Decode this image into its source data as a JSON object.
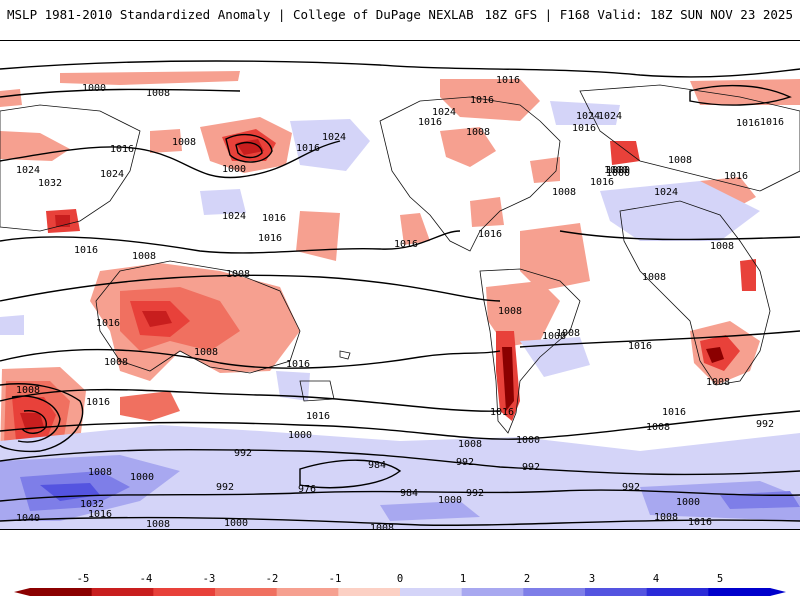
{
  "header": {
    "title_left": "MSLP 1981-2010 Standardized Anomaly | College of DuPage NEXLAB",
    "title_right": "18Z GFS | F168 Valid: 18Z SUN NOV 23 2025"
  },
  "map": {
    "contour_labels": [
      "1000",
      "1008",
      "1016",
      "1024",
      "1032",
      "1040",
      "992",
      "984",
      "976"
    ],
    "label_instances": [
      "1000",
      "1008",
      "1016",
      "1024",
      "1016",
      "1008",
      "1000",
      "1032",
      "1024",
      "1016",
      "1024",
      "1016",
      "1016",
      "1024",
      "1016",
      "1008",
      "1016",
      "1008",
      "1016",
      "1008",
      "1016",
      "1024",
      "1016",
      "1008",
      "1016",
      "1016",
      "1008",
      "1000",
      "1016",
      "1024",
      "1016",
      "1008",
      "1024",
      "1016",
      "1008",
      "1008",
      "1016",
      "1008",
      "1000",
      "992",
      "1016",
      "1008",
      "1000",
      "992",
      "1008",
      "1000",
      "992",
      "1040",
      "1032",
      "1016",
      "1008",
      "1000",
      "976",
      "984",
      "992",
      "984",
      "1000",
      "992",
      "1008",
      "1000",
      "992",
      "1008",
      "1016",
      "1016",
      "1008",
      "992",
      "1008",
      "1016",
      "1000",
      "1008",
      "1016",
      "1024",
      "1016",
      "1008",
      "1016",
      "1008",
      "1008",
      "1000"
    ]
  },
  "colorbar": {
    "ticks": [
      "-5",
      "-4",
      "-3",
      "-2",
      "-1",
      "0",
      "1",
      "2",
      "3",
      "4",
      "5"
    ],
    "colors_negative": [
      "#8b0000",
      "#c81e1e",
      "#e8413a",
      "#f07060",
      "#f6a090",
      "#fcd0c4"
    ],
    "colors_positive": [
      "#d4d4f8",
      "#a8a8f0",
      "#7e7ee8",
      "#5454e0",
      "#2a2ad8",
      "#0000cc"
    ]
  }
}
